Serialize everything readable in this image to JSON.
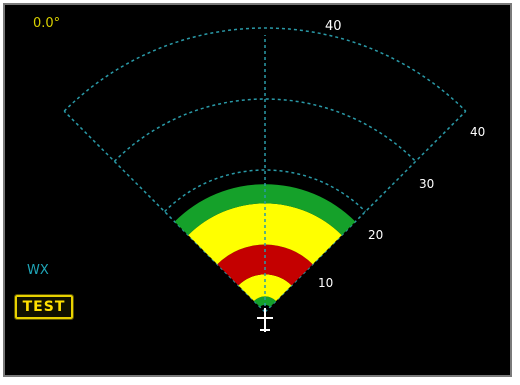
{
  "tilt": {
    "label": "0.0°"
  },
  "mode": {
    "label": "WX"
  },
  "test_button": {
    "label": "TEST"
  },
  "range": {
    "top_label": "40",
    "rings": [
      {
        "label": "10",
        "value": 10
      },
      {
        "label": "20",
        "value": 20
      },
      {
        "label": "30",
        "value": 30
      },
      {
        "label": "40",
        "value": 40
      }
    ]
  },
  "colors": {
    "ring_line": "#2a9aa8",
    "weather_green": "#15a12a",
    "weather_yellow": "#ffff00",
    "weather_red": "#c40000",
    "text_white": "#ffffff",
    "frame_bg": "#000000"
  },
  "weather_bands": [
    {
      "level": "green",
      "from": 1.0,
      "to": 2.2
    },
    {
      "level": "yellow",
      "from": 2.2,
      "to": 5.3
    },
    {
      "level": "red",
      "from": 5.3,
      "to": 9.5
    },
    {
      "level": "yellow",
      "from": 9.5,
      "to": 15.3
    },
    {
      "level": "green",
      "from": 15.3,
      "to": 18.0
    }
  ]
}
